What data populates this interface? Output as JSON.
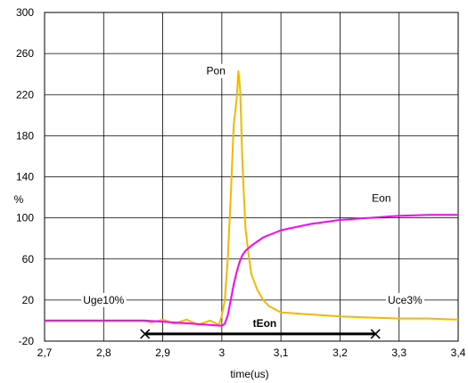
{
  "chart_data": {
    "type": "line",
    "title": "",
    "xlabel": "time(us)",
    "ylabel": "%",
    "xlim": [
      2.7,
      3.4
    ],
    "ylim": [
      -20,
      300
    ],
    "grid": true,
    "x_ticks": [
      2.7,
      2.8,
      2.9,
      3.0,
      3.1,
      3.2,
      3.3,
      3.4
    ],
    "x_tick_labels": [
      "2,7",
      "2,8",
      "2,9",
      "3",
      "3,1",
      "3,2",
      "3,3",
      "3,4"
    ],
    "y_ticks": [
      -20,
      20,
      60,
      100,
      140,
      180,
      220,
      260,
      300
    ],
    "y_tick_labels": [
      "-20",
      "20",
      "60",
      "100",
      "140",
      "180",
      "220",
      "260",
      "300"
    ],
    "series": [
      {
        "name": "Pon",
        "color": "#f5b800",
        "points": [
          [
            2.7,
            0
          ],
          [
            2.87,
            0
          ],
          [
            2.88,
            -2
          ],
          [
            2.9,
            1
          ],
          [
            2.92,
            -3
          ],
          [
            2.94,
            1
          ],
          [
            2.96,
            -4
          ],
          [
            2.98,
            0
          ],
          [
            2.995,
            -4
          ],
          [
            3.0,
            5
          ],
          [
            3.005,
            20
          ],
          [
            3.01,
            60
          ],
          [
            3.015,
            120
          ],
          [
            3.02,
            190
          ],
          [
            3.025,
            215
          ],
          [
            3.028,
            243
          ],
          [
            3.031,
            225
          ],
          [
            3.035,
            150
          ],
          [
            3.04,
            90
          ],
          [
            3.045,
            65
          ],
          [
            3.05,
            45
          ],
          [
            3.06,
            30
          ],
          [
            3.07,
            20
          ],
          [
            3.08,
            14
          ],
          [
            3.1,
            8
          ],
          [
            3.15,
            6
          ],
          [
            3.2,
            4
          ],
          [
            3.25,
            3
          ],
          [
            3.3,
            2
          ],
          [
            3.35,
            2
          ],
          [
            3.4,
            1
          ]
        ]
      },
      {
        "name": "Eon",
        "color": "#ff00ff",
        "points": [
          [
            2.7,
            0
          ],
          [
            2.87,
            0
          ],
          [
            2.95,
            -3
          ],
          [
            3.0,
            -5
          ],
          [
            3.005,
            -3
          ],
          [
            3.01,
            5
          ],
          [
            3.015,
            20
          ],
          [
            3.02,
            35
          ],
          [
            3.025,
            47
          ],
          [
            3.03,
            57
          ],
          [
            3.035,
            64
          ],
          [
            3.04,
            68
          ],
          [
            3.05,
            73
          ],
          [
            3.07,
            81
          ],
          [
            3.1,
            88
          ],
          [
            3.15,
            94
          ],
          [
            3.2,
            98
          ],
          [
            3.25,
            100
          ],
          [
            3.3,
            102
          ],
          [
            3.35,
            103
          ],
          [
            3.4,
            103
          ]
        ]
      }
    ],
    "interval": {
      "label": "tEon",
      "x_start": 2.87,
      "x_end": 3.26,
      "y": -13
    },
    "annotations": [
      {
        "text": "Pon",
        "x": 2.99,
        "y": 243
      },
      {
        "text": "Eon",
        "x": 3.27,
        "y": 119
      },
      {
        "text": "Uge10%",
        "x": 2.8,
        "y": 20
      },
      {
        "text": "Uce3%",
        "x": 3.31,
        "y": 20
      }
    ]
  }
}
